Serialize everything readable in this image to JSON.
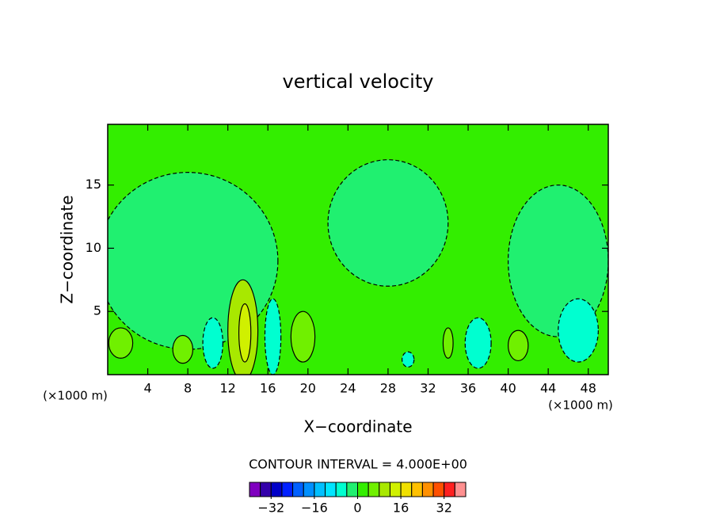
{
  "chart_data": {
    "type": "contour",
    "title": "vertical velocity",
    "x_label": "X−coordinate",
    "y_label": "Z−coordinate",
    "x_unit": "(×1000 m)",
    "x_unit_right": "(×1000 m)",
    "contour_interval": "CONTOUR INTERVAL = 4.000E+00",
    "xlim": [
      0,
      50
    ],
    "ylim": [
      0,
      19.8
    ],
    "xticks": [
      4,
      8,
      12,
      16,
      20,
      24,
      28,
      32,
      36,
      40,
      44,
      48
    ],
    "yticks": [
      5,
      10,
      15
    ],
    "field_value": 2,
    "features": [
      {
        "x": 8,
        "z": 9,
        "dx": 9,
        "dz": 7,
        "value": -2
      },
      {
        "x": 28,
        "z": 12,
        "dx": 6,
        "dz": 5,
        "value": -2
      },
      {
        "x": 45,
        "z": 9,
        "dx": 5,
        "dz": 6,
        "value": -2
      },
      {
        "x": 1.3,
        "z": 2.5,
        "dx": 1.2,
        "dz": 1.2,
        "value": 6
      },
      {
        "x": 7.5,
        "z": 2,
        "dx": 1,
        "dz": 1.1,
        "value": 6
      },
      {
        "x": 10.5,
        "z": 2.5,
        "dx": 1,
        "dz": 2,
        "value": -8
      },
      {
        "x": 13.5,
        "z": 3.5,
        "dx": 1.5,
        "dz": 4,
        "value": 10
      },
      {
        "x": 13.7,
        "z": 3.3,
        "dx": 0.6,
        "dz": 2.3,
        "value": 14
      },
      {
        "x": 16.5,
        "z": 3,
        "dx": 0.8,
        "dz": 3,
        "value": -8
      },
      {
        "x": 19.5,
        "z": 3,
        "dx": 1.2,
        "dz": 2,
        "value": 6
      },
      {
        "x": 30,
        "z": 1.2,
        "dx": 0.6,
        "dz": 0.6,
        "value": -6
      },
      {
        "x": 34,
        "z": 2.5,
        "dx": 0.5,
        "dz": 1.2,
        "value": 6
      },
      {
        "x": 37,
        "z": 2.5,
        "dx": 1.3,
        "dz": 2,
        "value": -8
      },
      {
        "x": 41,
        "z": 2.3,
        "dx": 1,
        "dz": 1.2,
        "value": 6
      },
      {
        "x": 47,
        "z": 3.5,
        "dx": 2,
        "dz": 2.5,
        "value": -6
      }
    ],
    "colorbar": {
      "levels": [
        -40,
        -36,
        -32,
        -28,
        -24,
        -20,
        -16,
        -12,
        -8,
        -4,
        0,
        4,
        8,
        12,
        16,
        20,
        24,
        28,
        32,
        36,
        40
      ],
      "colors": [
        "#7f00bf",
        "#3300aa",
        "#0000c8",
        "#0020ff",
        "#0060ff",
        "#0090ff",
        "#00bfff",
        "#00e5ff",
        "#00ffd0",
        "#20f070",
        "#33ee00",
        "#70f000",
        "#a8e800",
        "#d0f000",
        "#f0e000",
        "#ffc000",
        "#ff9000",
        "#ff5000",
        "#ff2020",
        "#ff9090"
      ],
      "ticks": [
        {
          "value": -32,
          "label": "−32"
        },
        {
          "value": -16,
          "label": "−16"
        },
        0,
        16,
        32
      ]
    }
  }
}
